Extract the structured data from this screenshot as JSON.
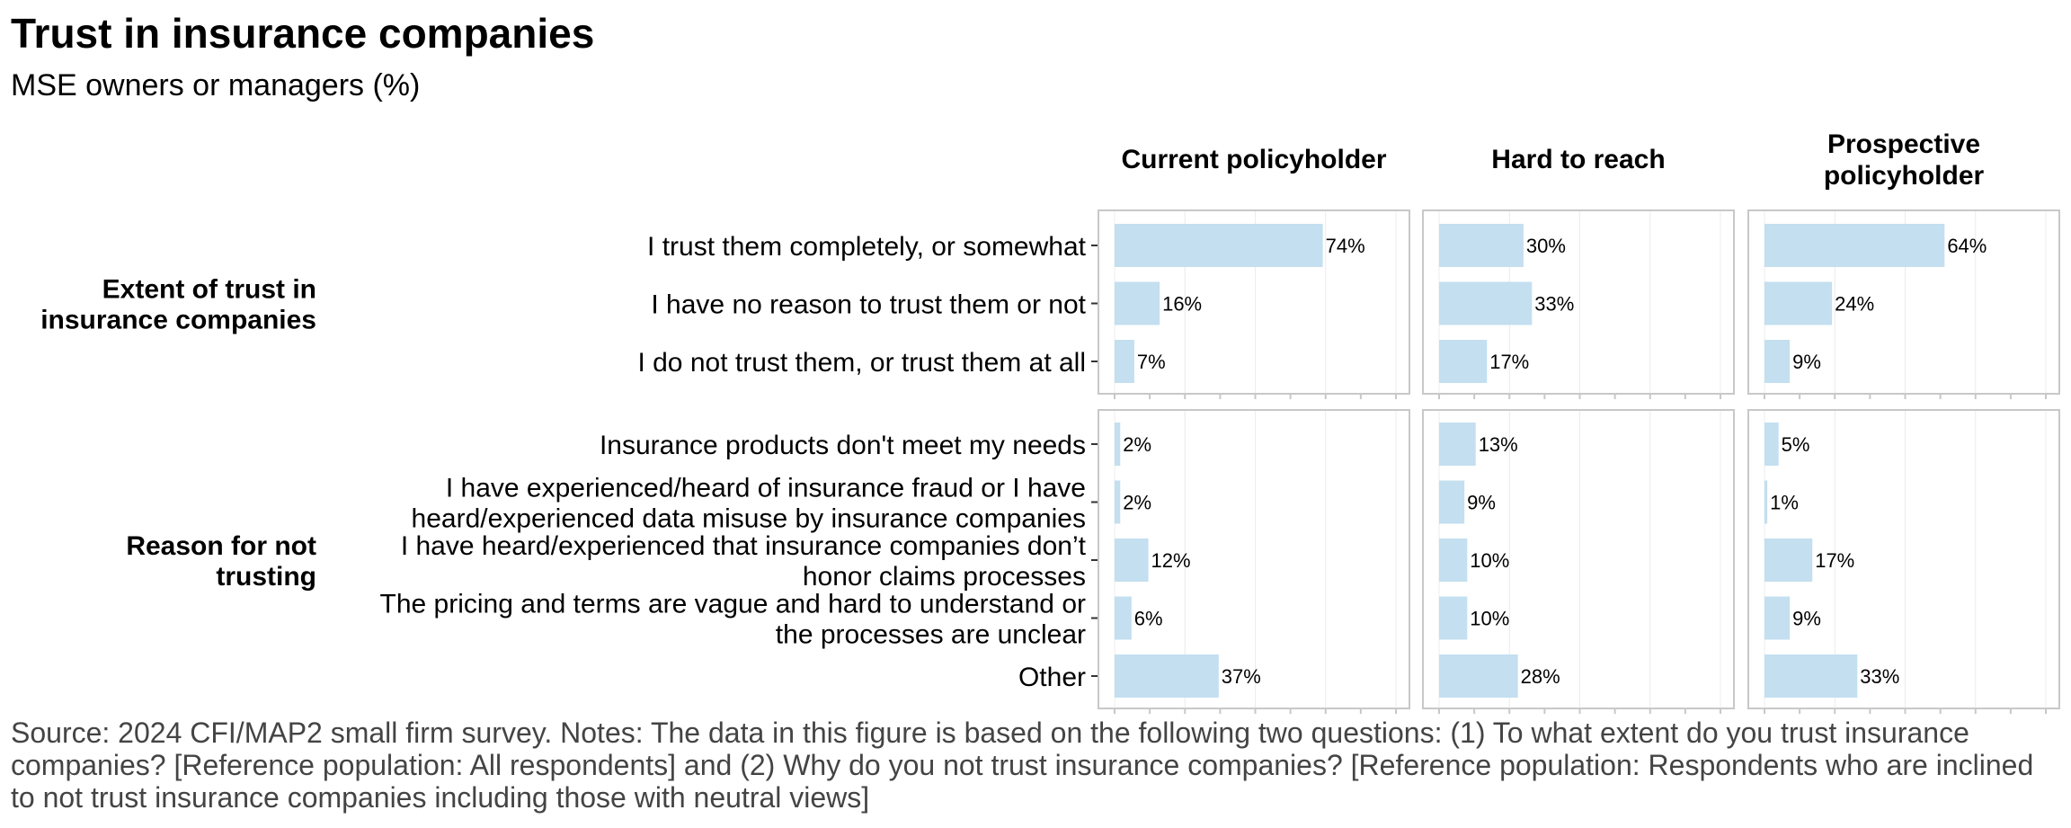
{
  "title": "Trust in insurance companies",
  "subtitle": "MSE owners or managers (%)",
  "caption": "Source: 2024 CFI/MAP2 small firm survey. Notes: The data in this figure is based on the following two questions: (1) To what extent do you trust insurance companies? [Reference population: All respondents] and (2) Why do you not trust insurance companies? [Reference population: Respondents who are inclined to not trust insurance companies including those with neutral views]",
  "colors": {
    "bar": "#c3dff0",
    "panel_border": "#c8c8c8",
    "grid": "#ececec"
  },
  "chart_data": {
    "type": "bar",
    "orientation": "horizontal",
    "facets": [
      "Current policyholder",
      "Hard to reach",
      "Prospective policyholder"
    ],
    "facet_title_lines": [
      [
        "Current policyholder"
      ],
      [
        "Hard to reach"
      ],
      [
        "Prospective",
        "policyholder"
      ]
    ],
    "xlim": [
      0,
      100
    ],
    "grid": true,
    "groups": [
      {
        "name": "Extent of trust in insurance companies",
        "name_lines": [
          "Extent of trust in",
          "insurance companies"
        ],
        "categories": [
          {
            "lines": [
              "I trust them completely, or somewhat"
            ],
            "values": [
              74,
              30,
              64
            ]
          },
          {
            "lines": [
              "I have no reason to trust them or not"
            ],
            "values": [
              16,
              33,
              24
            ]
          },
          {
            "lines": [
              "I do not trust them, or trust them at all"
            ],
            "values": [
              7,
              17,
              9
            ]
          }
        ]
      },
      {
        "name": "Reason for not trusting",
        "name_lines": [
          "Reason for not",
          "trusting"
        ],
        "categories": [
          {
            "lines": [
              "Insurance products don't meet my needs"
            ],
            "values": [
              2,
              13,
              5
            ]
          },
          {
            "lines": [
              "I have experienced/heard of insurance fraud or I have",
              "heard/experienced data misuse by insurance companies"
            ],
            "values": [
              2,
              9,
              1
            ]
          },
          {
            "lines": [
              "I have heard/experienced that insurance companies don’t",
              "honor claims processes"
            ],
            "values": [
              12,
              10,
              17
            ]
          },
          {
            "lines": [
              "The pricing and terms are vague and hard to understand or",
              "the processes are unclear"
            ],
            "values": [
              6,
              10,
              9
            ]
          },
          {
            "lines": [
              "Other"
            ],
            "values": [
              37,
              28,
              33
            ]
          }
        ]
      }
    ],
    "value_suffix": "%"
  }
}
